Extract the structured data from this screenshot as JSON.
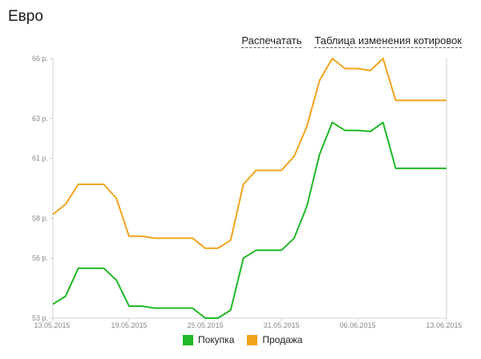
{
  "header": {
    "title": "Евро",
    "print_label": "Распечатать",
    "table_label": "Таблица изменения котировок"
  },
  "colors": {
    "buy": "#20b827",
    "sell": "#f0a31c",
    "axis": "#d0d0d0"
  },
  "chart_data": {
    "type": "line",
    "title": "",
    "xlabel": "",
    "ylabel": "",
    "ylim": [
      53,
      66
    ],
    "y_ticks": [
      {
        "value": 53,
        "label": "53 р."
      },
      {
        "value": 56,
        "label": "56 р."
      },
      {
        "value": 58,
        "label": "58 р."
      },
      {
        "value": 61,
        "label": "61 р."
      },
      {
        "value": 63,
        "label": "63 р."
      },
      {
        "value": 66,
        "label": "66 р."
      }
    ],
    "x_ticks": [
      "13.05.2015",
      "19.05.2015",
      "25.05.2015",
      "31.05.2015",
      "06.06.2015",
      "13.06.2015"
    ],
    "x_index_of_ticks": [
      0,
      6,
      12,
      18,
      24,
      31
    ],
    "x": [
      "13.05.2015",
      "14.05.2015",
      "15.05.2015",
      "16.05.2015",
      "17.05.2015",
      "18.05.2015",
      "19.05.2015",
      "20.05.2015",
      "21.05.2015",
      "22.05.2015",
      "23.05.2015",
      "24.05.2015",
      "25.05.2015",
      "26.05.2015",
      "27.05.2015",
      "28.05.2015",
      "29.05.2015",
      "30.05.2015",
      "31.05.2015",
      "01.06.2015",
      "02.06.2015",
      "03.06.2015",
      "04.06.2015",
      "05.06.2015",
      "06.06.2015",
      "07.06.2015",
      "08.06.2015",
      "09.06.2015",
      "10.06.2015",
      "11.06.2015",
      "12.06.2015",
      "13.06.2015"
    ],
    "series": [
      {
        "name": "Покупка",
        "color": "#20b827",
        "values": [
          53.7,
          54.1,
          55.5,
          55.5,
          55.5,
          54.9,
          53.6,
          53.6,
          53.5,
          53.5,
          53.5,
          53.5,
          53.0,
          53.0,
          53.4,
          56.0,
          56.4,
          56.4,
          56.4,
          57.0,
          58.6,
          61.2,
          62.8,
          62.4,
          62.4,
          62.35,
          62.8,
          60.5,
          60.5,
          60.5,
          60.5,
          60.5
        ]
      },
      {
        "name": "Продажа",
        "color": "#f0a31c",
        "values": [
          58.2,
          58.7,
          59.7,
          59.7,
          59.7,
          59.0,
          57.1,
          57.1,
          57.0,
          57.0,
          57.0,
          57.0,
          56.5,
          56.5,
          56.9,
          59.7,
          60.4,
          60.4,
          60.4,
          61.1,
          62.6,
          64.9,
          66.0,
          65.5,
          65.5,
          65.4,
          66.0,
          63.9,
          63.9,
          63.9,
          63.9,
          63.9
        ]
      }
    ]
  },
  "legend": {
    "buy_label": "Покупка",
    "sell_label": "Продажа"
  }
}
